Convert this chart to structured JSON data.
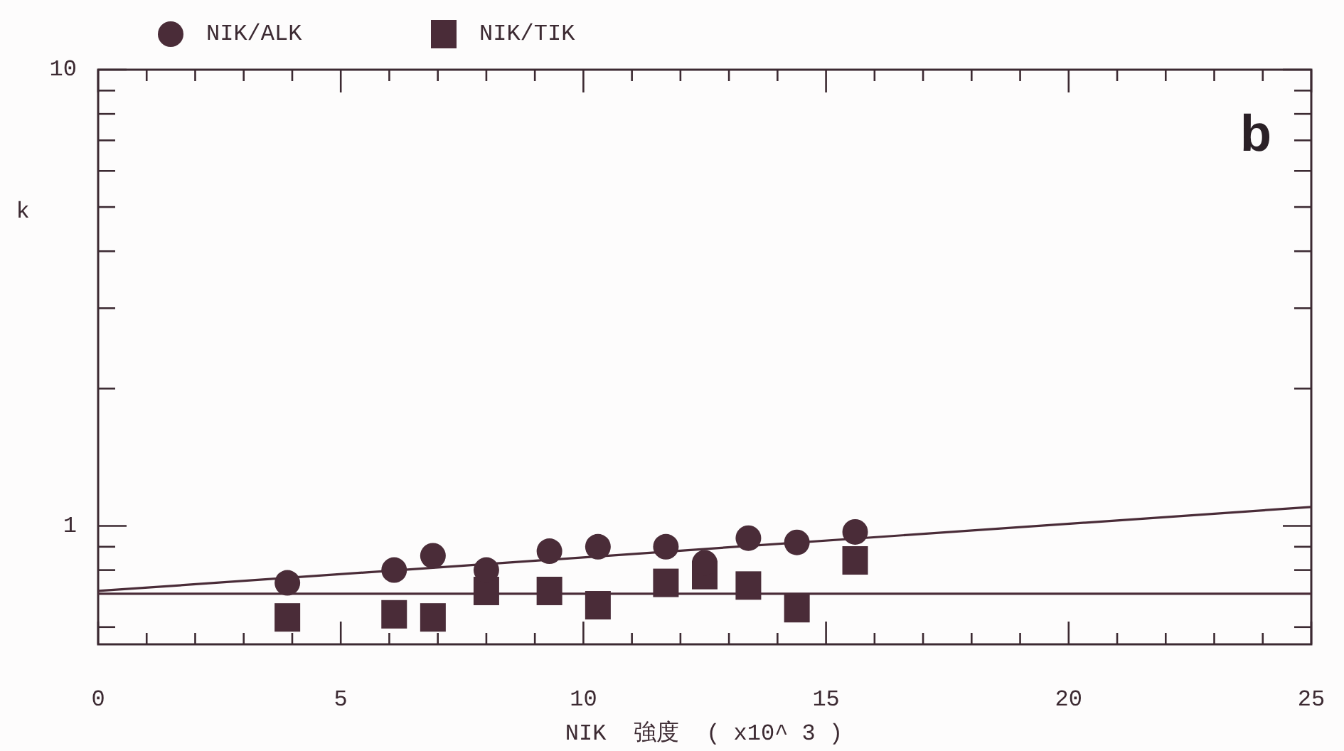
{
  "chart_data": {
    "type": "scatter",
    "xlabel": "NIK  強度  ( x10^ 3 )",
    "ylabel": "k",
    "annotations": [
      "b"
    ],
    "log": "y",
    "grid": false,
    "legend": "top left",
    "xlim": [
      0,
      25
    ],
    "ylim": [
      0.55,
      10
    ],
    "xticks": [
      0,
      {
        "value": 1,
        "label": null
      },
      {
        "value": 2,
        "label": null
      },
      {
        "value": 3,
        "label": null
      },
      {
        "value": 4,
        "label": null
      },
      5,
      {
        "value": 6,
        "label": null
      },
      {
        "value": 7,
        "label": null
      },
      {
        "value": 8,
        "label": null
      },
      {
        "value": 9,
        "label": null
      },
      10,
      {
        "value": 11,
        "label": null
      },
      {
        "value": 12,
        "label": null
      },
      {
        "value": 13,
        "label": null
      },
      {
        "value": 14,
        "label": null
      },
      15,
      {
        "value": 16,
        "label": null
      },
      {
        "value": 17,
        "label": null
      },
      {
        "value": 18,
        "label": null
      },
      {
        "value": 19,
        "label": null
      },
      20,
      {
        "value": 21,
        "label": null
      },
      {
        "value": 22,
        "label": null
      },
      {
        "value": 23,
        "label": null
      },
      {
        "value": 24,
        "label": null
      },
      25
    ],
    "yticks": [
      {
        "value": 0.6,
        "label": null
      },
      {
        "value": 0.8,
        "label": null
      },
      {
        "value": 0.9,
        "label": null
      },
      1,
      {
        "value": 2,
        "label": null
      },
      {
        "value": 3,
        "label": null
      },
      {
        "value": 4,
        "label": null
      },
      {
        "value": 5,
        "label": null
      },
      {
        "value": 6,
        "label": null
      },
      {
        "value": 7,
        "label": null
      },
      {
        "value": 8,
        "label": null
      },
      {
        "value": 9,
        "label": null
      },
      10
    ],
    "series": [
      {
        "name": "NIK/ALK",
        "color": "#4a2c38",
        "marker": "circle",
        "x": [
          3.9,
          6.1,
          6.9,
          8.0,
          9.3,
          10.3,
          11.7,
          12.5,
          13.4,
          14.4,
          15.6
        ],
        "values": [
          0.75,
          0.8,
          0.86,
          0.8,
          0.88,
          0.9,
          0.9,
          0.83,
          0.94,
          0.92,
          0.97
        ]
      },
      {
        "name": "NIK/TIK",
        "color": "#4a2c38",
        "marker": "square",
        "x": [
          3.9,
          6.1,
          6.9,
          8.0,
          9.3,
          10.3,
          11.7,
          12.5,
          13.4,
          14.4,
          15.6
        ],
        "values": [
          0.63,
          0.64,
          0.63,
          0.72,
          0.72,
          0.67,
          0.75,
          0.78,
          0.74,
          0.66,
          0.84
        ]
      },
      {
        "type": "line",
        "color": "#4a2c38",
        "marker": "none",
        "x": [
          0,
          25
        ],
        "values": [
          0.72,
          1.1
        ]
      },
      {
        "type": "line",
        "color": "#4a2c38",
        "marker": "none",
        "x": [
          0,
          25
        ],
        "values": [
          0.71,
          0.71
        ]
      }
    ]
  }
}
